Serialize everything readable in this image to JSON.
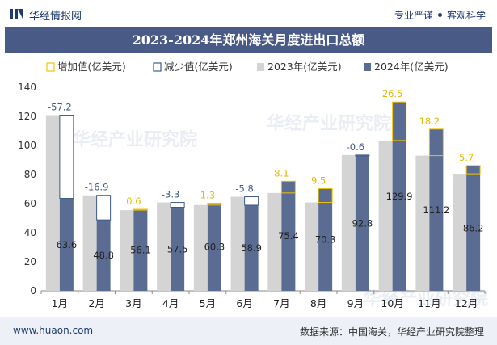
{
  "header": {
    "brand": "华经情报网",
    "tagline_1": "专业严谨",
    "tagline_2": "客观科学"
  },
  "footer": {
    "url": "www.huaon.com",
    "source": "数据来源：中国海关，华经产业研究院整理"
  },
  "watermark": "华经产业研究院",
  "colors": {
    "increase": "#f2c200",
    "decrease": "#3b5a8a",
    "y2023": "#d4d4d4",
    "y2024": "#5b6c93",
    "title_bg": "#4a5a87"
  },
  "chart_data": {
    "type": "bar",
    "title": "2023-2024年郑州海关月度进出口总额",
    "categories": [
      "1月",
      "2月",
      "3月",
      "4月",
      "5月",
      "6月",
      "7月",
      "8月",
      "9月",
      "10月",
      "11月",
      "12月"
    ],
    "ylim": [
      0,
      140
    ],
    "yticks": [
      0,
      20,
      40,
      60,
      80,
      100,
      120,
      140
    ],
    "grid": false,
    "legend_position": "top",
    "series": [
      {
        "name": "增加值(亿美元)",
        "kind": "increase"
      },
      {
        "name": "减少值(亿美元)",
        "kind": "decrease"
      },
      {
        "name": "2023年(亿美元)",
        "values": [
          120.8,
          65.7,
          55.5,
          60.8,
          59.0,
          64.7,
          67.3,
          60.8,
          93.4,
          103.4,
          93.0,
          80.5
        ]
      },
      {
        "name": "2024年(亿美元)",
        "values": [
          63.6,
          48.8,
          56.1,
          57.5,
          60.3,
          58.9,
          75.4,
          70.3,
          92.8,
          129.9,
          111.2,
          86.2
        ]
      }
    ],
    "change_labels": [
      "-57.2",
      "-16.9",
      "0.6",
      "-3.3",
      "1.3",
      "-5.8",
      "8.1",
      "9.5",
      "-0.6",
      "26.5",
      "18.2",
      "5.7"
    ],
    "value_labels_2024": [
      "63.6",
      "48.8",
      "56.1",
      "57.5",
      "60.3",
      "58.9",
      "75.4",
      "70.3",
      "92.8",
      "129.9",
      "111.2",
      "86.2"
    ]
  }
}
